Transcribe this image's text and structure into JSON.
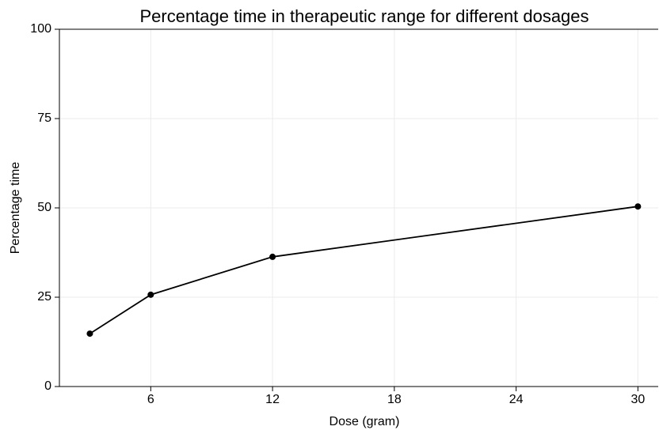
{
  "chart_data": {
    "type": "line",
    "title": "Percentage time in therapeutic range for different dosages",
    "x_label": "Dose (gram)",
    "y_label": "Percentage time",
    "x": [
      3,
      6,
      12,
      30
    ],
    "series": [
      {
        "name": "Percentage time",
        "color": "#000000",
        "values": [
          14.8,
          25.7,
          36.3,
          50.4
        ]
      }
    ],
    "xlim": [
      1.5,
      31
    ],
    "xticks": [
      6,
      12,
      18,
      24,
      30
    ],
    "ylim": [
      0,
      100
    ],
    "yticks": [
      0,
      25,
      50,
      75,
      100
    ],
    "grid": true
  }
}
